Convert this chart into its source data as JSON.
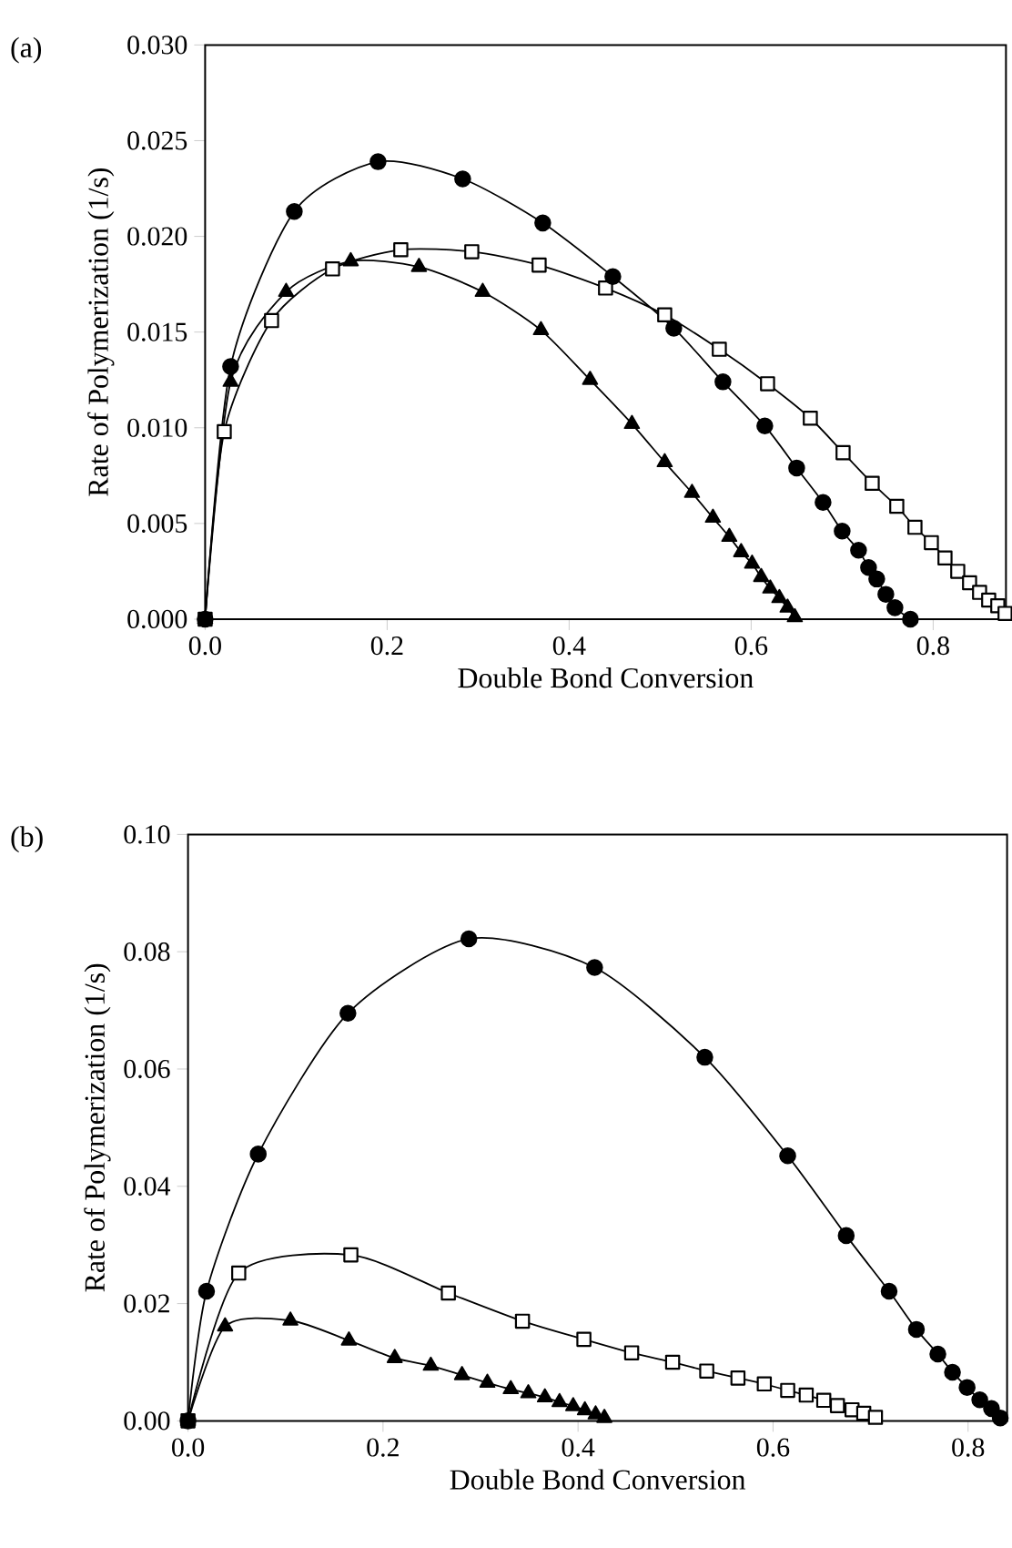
{
  "chart_data": [
    {
      "type": "line",
      "xlabel": "Double Bond Conversion",
      "ylabel": "Rate of Polymerization (1/s)",
      "annotations": [
        "(a)"
      ],
      "xlim": [
        0,
        0.88
      ],
      "ylim": [
        0,
        0.03
      ],
      "xticks": [
        {
          "value": 0,
          "label": "0.0"
        },
        {
          "value": 0.2,
          "label": "0.2"
        },
        {
          "value": 0.4,
          "label": "0.4"
        },
        {
          "value": 0.6,
          "label": "0.6"
        },
        {
          "value": 0.8,
          "label": "0.8"
        }
      ],
      "yticks": [
        {
          "value": 0,
          "label": "0.000"
        },
        {
          "value": 0.005,
          "label": "0.005"
        },
        {
          "value": 0.01,
          "label": "0.010"
        },
        {
          "value": 0.015,
          "label": "0.015"
        },
        {
          "value": 0.02,
          "label": "0.020"
        },
        {
          "value": 0.025,
          "label": "0.025"
        },
        {
          "value": 0.03,
          "label": "0.030"
        }
      ],
      "grid": false,
      "line_style": "solid",
      "series": [
        {
          "color": "#000000",
          "marker": "square",
          "x": [
            0,
            0.021,
            0.073,
            0.14,
            0.215,
            0.293,
            0.367,
            0.44,
            0.505,
            0.565,
            0.618,
            0.665,
            0.701,
            0.733,
            0.76,
            0.78,
            0.798,
            0.813,
            0.827,
            0.84,
            0.851,
            0.861,
            0.871,
            0.879
          ],
          "values": [
            0,
            0.0098,
            0.0156,
            0.0183,
            0.0193,
            0.0192,
            0.0185,
            0.0173,
            0.0159,
            0.0141,
            0.0123,
            0.0105,
            0.0087,
            0.0071,
            0.0059,
            0.0048,
            0.004,
            0.0032,
            0.0025,
            0.0019,
            0.0014,
            0.001,
            0.0007,
            0.0003
          ]
        },
        {
          "color": "#000000",
          "marker": "circle",
          "x": [
            0,
            0.028,
            0.098,
            0.19,
            0.283,
            0.371,
            0.448,
            0.515,
            0.569,
            0.615,
            0.65,
            0.679,
            0.7,
            0.718,
            0.729,
            0.738,
            0.748,
            0.758,
            0.775
          ],
          "values": [
            0,
            0.0132,
            0.0213,
            0.0239,
            0.023,
            0.0207,
            0.0179,
            0.0152,
            0.0124,
            0.0101,
            0.0079,
            0.0061,
            0.0046,
            0.0036,
            0.0027,
            0.0021,
            0.0013,
            0.0006,
            0
          ]
        },
        {
          "color": "#000000",
          "marker": "triangle",
          "x": [
            0,
            0.028,
            0.089,
            0.16,
            0.235,
            0.305,
            0.369,
            0.423,
            0.469,
            0.505,
            0.535,
            0.558,
            0.576,
            0.589,
            0.601,
            0.611,
            0.621,
            0.631,
            0.64,
            0.648
          ],
          "values": [
            0,
            0.0124,
            0.0171,
            0.0187,
            0.0184,
            0.0171,
            0.0151,
            0.0125,
            0.0102,
            0.0082,
            0.0066,
            0.0053,
            0.0043,
            0.0035,
            0.0029,
            0.0022,
            0.0016,
            0.0011,
            0.0006,
            0.0001
          ]
        }
      ]
    },
    {
      "type": "line",
      "xlabel": "Double Bond Conversion",
      "ylabel": "Rate of Polymerization (1/s)",
      "annotations": [
        "(b)"
      ],
      "xlim": [
        0,
        0.84
      ],
      "ylim": [
        0,
        0.1
      ],
      "xticks": [
        {
          "value": 0,
          "label": "0.0"
        },
        {
          "value": 0.2,
          "label": "0.2"
        },
        {
          "value": 0.4,
          "label": "0.4"
        },
        {
          "value": 0.6,
          "label": "0.6"
        },
        {
          "value": 0.8,
          "label": "0.8"
        }
      ],
      "yticks": [
        {
          "value": 0,
          "label": "0.00"
        },
        {
          "value": 0.02,
          "label": "0.02"
        },
        {
          "value": 0.04,
          "label": "0.04"
        },
        {
          "value": 0.06,
          "label": "0.06"
        },
        {
          "value": 0.08,
          "label": "0.08"
        },
        {
          "value": 0.1,
          "label": "0.10"
        }
      ],
      "grid": false,
      "line_style": "solid",
      "series": [
        {
          "color": "#000000",
          "marker": "square",
          "x": [
            0,
            0.052,
            0.167,
            0.267,
            0.343,
            0.406,
            0.455,
            0.497,
            0.532,
            0.564,
            0.591,
            0.615,
            0.634,
            0.652,
            0.666,
            0.681,
            0.693,
            0.705
          ],
          "values": [
            0,
            0.0252,
            0.0283,
            0.0218,
            0.017,
            0.0139,
            0.0116,
            0.01,
            0.0085,
            0.0073,
            0.0063,
            0.0052,
            0.0044,
            0.0035,
            0.0026,
            0.0019,
            0.0013,
            0.0006
          ]
        },
        {
          "color": "#000000",
          "marker": "circle",
          "x": [
            0,
            0.019,
            0.072,
            0.164,
            0.288,
            0.417,
            0.53,
            0.615,
            0.675,
            0.719,
            0.747,
            0.769,
            0.784,
            0.799,
            0.812,
            0.824,
            0.833
          ],
          "values": [
            0,
            0.0221,
            0.0455,
            0.0695,
            0.0822,
            0.0773,
            0.062,
            0.0452,
            0.0316,
            0.0221,
            0.0156,
            0.0114,
            0.0083,
            0.0057,
            0.0036,
            0.0021,
            0.0005
          ]
        },
        {
          "color": "#000000",
          "marker": "triangle",
          "x": [
            0,
            0.038,
            0.105,
            0.165,
            0.212,
            0.249,
            0.281,
            0.307,
            0.331,
            0.349,
            0.366,
            0.381,
            0.395,
            0.407,
            0.418,
            0.427
          ],
          "values": [
            0,
            0.0161,
            0.0171,
            0.0137,
            0.0107,
            0.0094,
            0.0078,
            0.0065,
            0.0054,
            0.0047,
            0.004,
            0.0032,
            0.0025,
            0.0018,
            0.0011,
            0.0005
          ]
        }
      ]
    }
  ]
}
